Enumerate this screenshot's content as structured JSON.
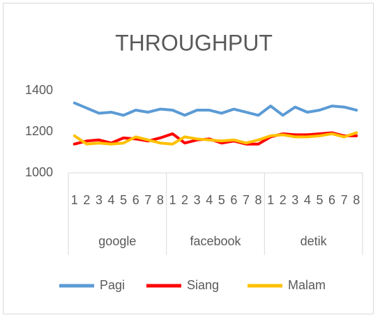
{
  "chart_data": {
    "type": "line",
    "title": "THROUGHPUT",
    "groups": [
      "google",
      "facebook",
      "detik"
    ],
    "categories": [
      "1",
      "2",
      "3",
      "4",
      "5",
      "6",
      "7",
      "8",
      "1",
      "2",
      "3",
      "4",
      "5",
      "6",
      "7",
      "8",
      "1",
      "2",
      "3",
      "4",
      "5",
      "6",
      "7",
      "8"
    ],
    "series": [
      {
        "name": "Pagi",
        "color": "#5b9bd5",
        "values": [
          1340,
          1315,
          1290,
          1295,
          1280,
          1305,
          1295,
          1310,
          1305,
          1280,
          1305,
          1305,
          1290,
          1310,
          1295,
          1280,
          1325,
          1280,
          1320,
          1295,
          1305,
          1325,
          1320,
          1305
        ]
      },
      {
        "name": "Siang",
        "color": "#ff0000",
        "values": [
          1140,
          1155,
          1160,
          1145,
          1170,
          1165,
          1155,
          1170,
          1190,
          1145,
          1160,
          1165,
          1145,
          1155,
          1140,
          1140,
          1175,
          1190,
          1185,
          1185,
          1190,
          1195,
          1180,
          1180
        ]
      },
      {
        "name": "Malam",
        "color": "#ffc000",
        "values": [
          1180,
          1140,
          1145,
          1140,
          1145,
          1175,
          1160,
          1145,
          1140,
          1175,
          1165,
          1160,
          1155,
          1160,
          1145,
          1160,
          1180,
          1185,
          1175,
          1175,
          1180,
          1190,
          1175,
          1195
        ]
      }
    ],
    "ylim": [
      1000,
      1400
    ],
    "yticks": [
      1000,
      1200,
      1400
    ],
    "grid": false,
    "legend": "bottom"
  }
}
